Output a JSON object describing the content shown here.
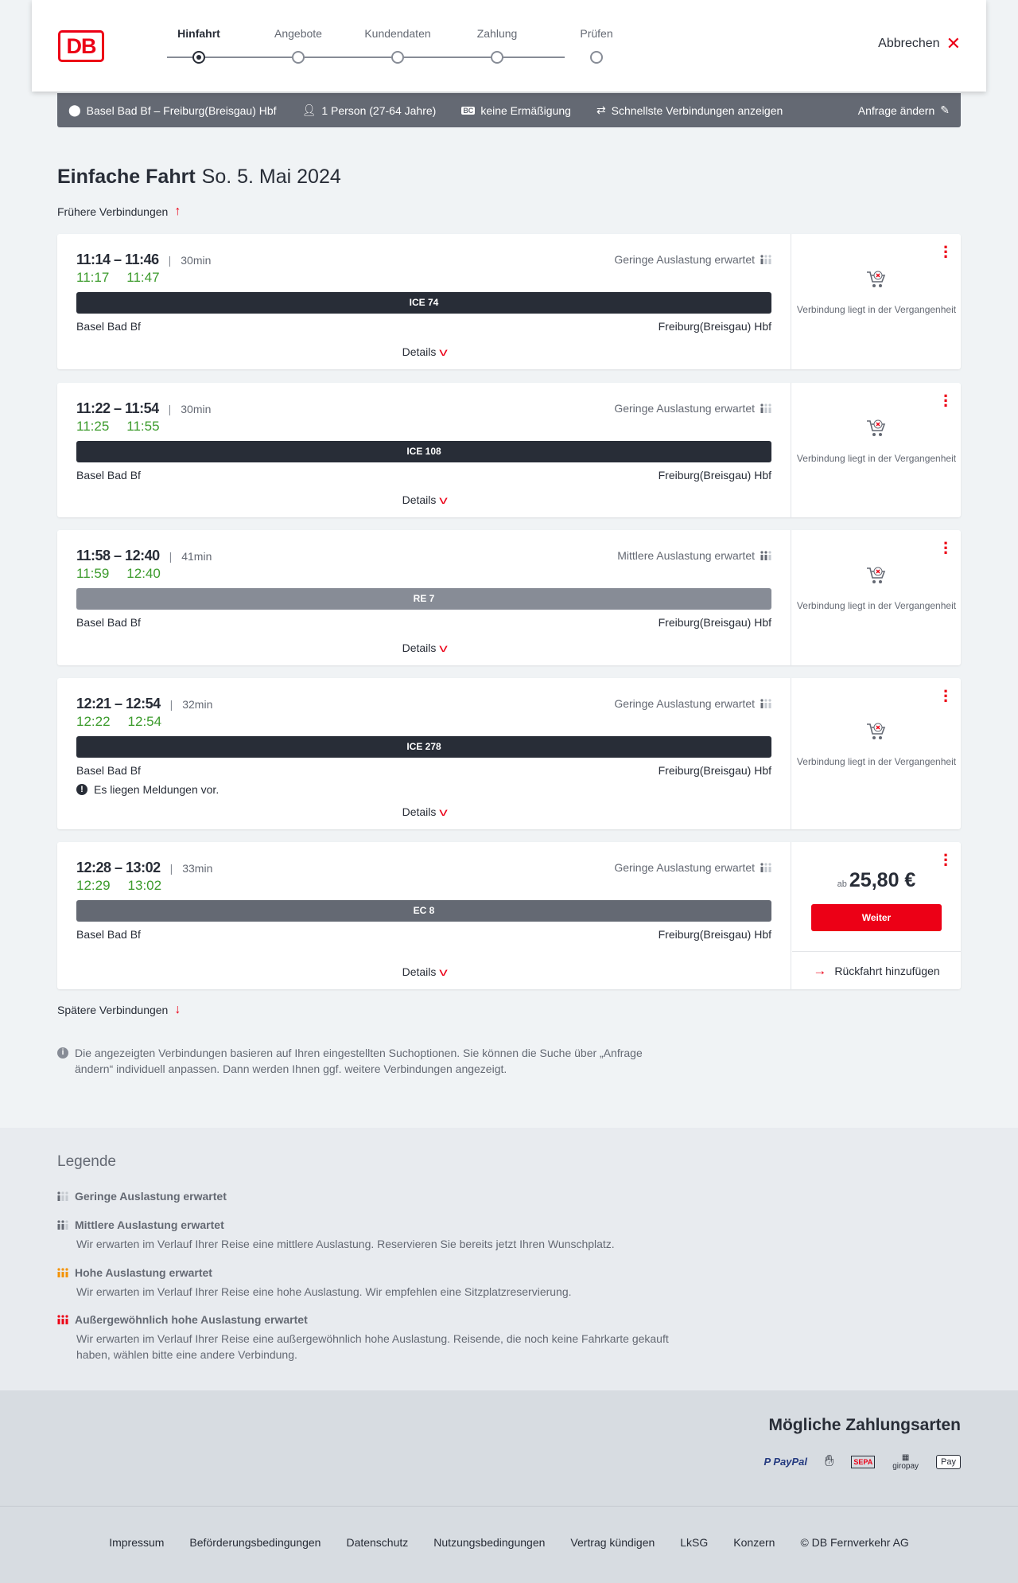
{
  "header": {
    "logo": "DB",
    "cancel_label": "Abbrechen",
    "steps": [
      {
        "label": "Hinfahrt",
        "active": true
      },
      {
        "label": "Angebote"
      },
      {
        "label": "Kundendaten"
      },
      {
        "label": "Zahlung"
      },
      {
        "label": "Prüfen"
      }
    ]
  },
  "search": {
    "route": "Basel Bad Bf – Freiburg(Breisgau) Hbf",
    "travellers": "1 Person (27-64 Jahre)",
    "discount": "keine Ermäßigung",
    "fastest": "Schnellste Verbindungen anzeigen",
    "edit": "Anfrage ändern"
  },
  "page": {
    "title": "Einfache Fahrt",
    "date": "So. 5. Mai 2024",
    "earlier": "Frühere Verbindungen",
    "later": "Spätere Verbindungen",
    "note": "Die angezeigten Verbindungen basieren auf Ihren eingestellten Suchoptionen. Sie können die Suche über „Anfrage ändern“ individuell anpassen. Dann werden Ihnen ggf. weitere Verbindungen angezeigt."
  },
  "labels": {
    "details": "Details",
    "past": "Verbindung liegt in der Vergangenheit",
    "price_prefix": "ab",
    "continue": "Weiter",
    "add_return": "Rückfahrt hinzufügen"
  },
  "connections": [
    {
      "times": "11:14 – 11:46",
      "duration": "30min",
      "real_dep": "11:17",
      "real_arr": "11:47",
      "occupancy": "Geringe Auslastung erwartet",
      "occ_level": 1,
      "train": "ICE 74",
      "train_color": "#282d37",
      "from": "Basel Bad Bf",
      "to": "Freiburg(Breisgau) Hbf",
      "status": "past"
    },
    {
      "times": "11:22 – 11:54",
      "duration": "30min",
      "real_dep": "11:25",
      "real_arr": "11:55",
      "occupancy": "Geringe Auslastung erwartet",
      "occ_level": 1,
      "train": "ICE 108",
      "train_color": "#282d37",
      "from": "Basel Bad Bf",
      "to": "Freiburg(Breisgau) Hbf",
      "status": "past"
    },
    {
      "times": "11:58 – 12:40",
      "duration": "41min",
      "real_dep": "11:59",
      "real_arr": "12:40",
      "occupancy": "Mittlere Auslastung erwartet",
      "occ_level": 2,
      "train": "RE 7",
      "train_color": "#878c96",
      "from": "Basel Bad Bf",
      "to": "Freiburg(Breisgau) Hbf",
      "status": "past"
    },
    {
      "times": "12:21 – 12:54",
      "duration": "32min",
      "real_dep": "12:22",
      "real_arr": "12:54",
      "occupancy": "Geringe Auslastung erwartet",
      "occ_level": 1,
      "train": "ICE 278",
      "train_color": "#282d37",
      "from": "Basel Bad Bf",
      "to": "Freiburg(Breisgau) Hbf",
      "message": "Es liegen Meldungen vor.",
      "status": "past"
    },
    {
      "times": "12:28 – 13:02",
      "duration": "33min",
      "real_dep": "12:29",
      "real_arr": "13:02",
      "occupancy": "Geringe Auslastung erwartet",
      "occ_level": 1,
      "train": "EC 8",
      "train_color": "#646973",
      "from": "Basel Bad Bf",
      "to": "Freiburg(Breisgau) Hbf",
      "status": "bookable",
      "price": "25,80 €"
    }
  ],
  "legend": {
    "title": "Legende",
    "items": [
      {
        "title": "Geringe Auslastung erwartet",
        "level": 1,
        "color": "#646973"
      },
      {
        "title": "Mittlere Auslastung erwartet",
        "level": 2,
        "color": "#646973",
        "text": "Wir erwarten im Verlauf Ihrer Reise eine mittlere Auslastung. Reservieren Sie bereits jetzt Ihren Wunschplatz."
      },
      {
        "title": "Hohe Auslastung erwartet",
        "level": 3,
        "color": "#f39200",
        "text": "Wir erwarten im Verlauf Ihrer Reise eine hohe Auslastung. Wir empfehlen eine Sitzplatzreservierung."
      },
      {
        "title": "Außergewöhnlich hohe Auslastung erwartet",
        "level": 4,
        "color": "#ec0016",
        "text": "Wir erwarten im Verlauf Ihrer Reise eine außergewöhnlich hohe Auslastung. Reisende, die noch keine Fahrkarte gekauft haben, wählen bitte eine andere Verbindung."
      }
    ]
  },
  "payment": {
    "title": "Mögliche Zahlungsarten",
    "methods": [
      "PayPal",
      "Kreditkarte",
      "SEPA",
      "giropay",
      "Apple Pay"
    ]
  },
  "footer": {
    "links": [
      "Impressum",
      "Beförderungsbedingungen",
      "Datenschutz",
      "Nutzungsbedingungen",
      "Vertrag kündigen",
      "LkSG",
      "Konzern",
      "© DB Fernverkehr AG"
    ]
  }
}
